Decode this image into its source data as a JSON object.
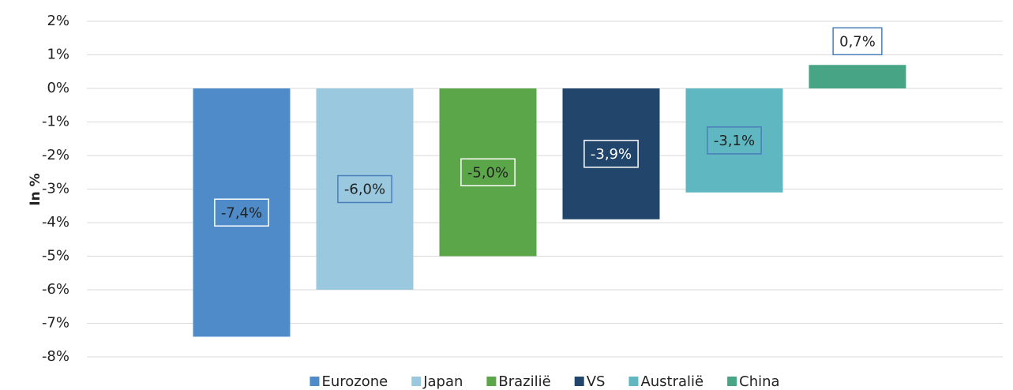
{
  "chart_data": {
    "type": "bar",
    "y_label": "In %",
    "series": [
      {
        "name": "Eurozone",
        "color": "#4f8bc9",
        "values": [
          -7.4
        ],
        "value_labels": [
          "-7,4%"
        ]
      },
      {
        "name": "Japan",
        "color": "#9ac9df",
        "values": [
          -6.0
        ],
        "value_labels": [
          "-6,0%"
        ]
      },
      {
        "name": "Brazilië",
        "color": "#5ca64a",
        "values": [
          -5.0
        ],
        "value_labels": [
          "-5,0%"
        ]
      },
      {
        "name": "VS",
        "color": "#22466b",
        "values": [
          -3.9
        ],
        "value_labels": [
          "-3,9%"
        ]
      },
      {
        "name": "Australië",
        "color": "#5fb8c1",
        "values": [
          -3.1
        ],
        "value_labels": [
          "-3,1%"
        ]
      },
      {
        "name": "China",
        "color": "#47a586",
        "values": [
          0.7
        ],
        "value_labels": [
          "0,7%"
        ]
      }
    ],
    "ylim": [
      -8,
      2
    ],
    "yticks": [
      {
        "value": 2,
        "label": "2%"
      },
      {
        "value": 1,
        "label": "1%"
      },
      {
        "value": 0,
        "label": "0%"
      },
      {
        "value": -1,
        "label": "-1%"
      },
      {
        "value": -2,
        "label": "-2%"
      },
      {
        "value": -3,
        "label": "-3%"
      },
      {
        "value": -4,
        "label": "-4%"
      },
      {
        "value": -5,
        "label": "-5%"
      },
      {
        "value": -6,
        "label": "-6%"
      },
      {
        "value": -7,
        "label": "-7%"
      },
      {
        "value": -8,
        "label": "-8%"
      }
    ],
    "grid": true,
    "legend": "bottom"
  }
}
